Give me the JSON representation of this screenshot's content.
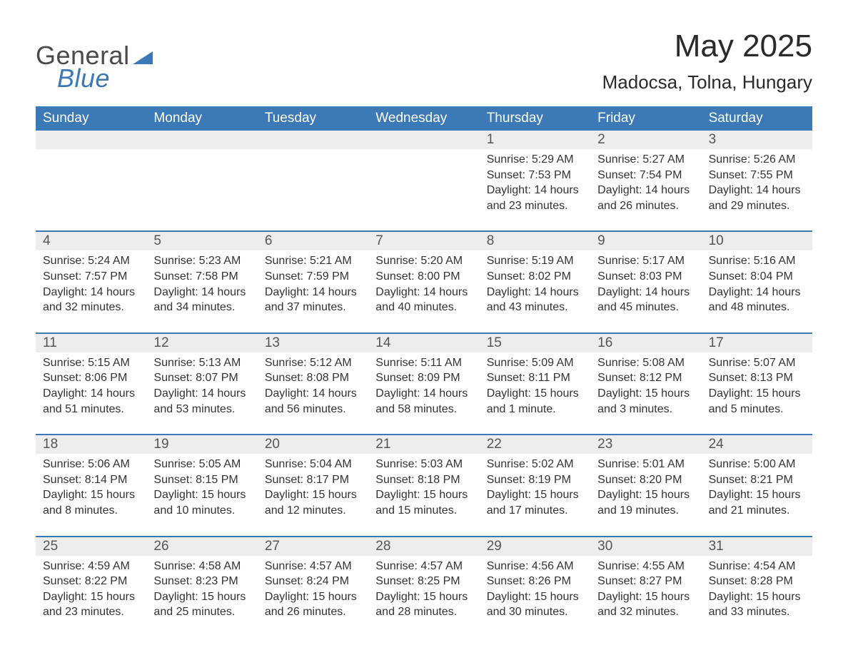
{
  "logo": {
    "word1": "General",
    "word2": "Blue"
  },
  "title": "May 2025",
  "subtitle": "Madocsa, Tolna, Hungary",
  "colors": {
    "header_bg": "#3b79b7",
    "header_text": "#ffffff",
    "daynum_bg": "#ededed",
    "body_text": "#333333",
    "logo_gray": "#4a4a4a",
    "logo_blue": "#3b79b7",
    "page_bg": "#ffffff"
  },
  "weekdays": [
    "Sunday",
    "Monday",
    "Tuesday",
    "Wednesday",
    "Thursday",
    "Friday",
    "Saturday"
  ],
  "weeks": [
    [
      null,
      null,
      null,
      null,
      {
        "n": "1",
        "sr": "Sunrise: 5:29 AM",
        "ss": "Sunset: 7:53 PM",
        "d1": "Daylight: 14 hours",
        "d2": "and 23 minutes."
      },
      {
        "n": "2",
        "sr": "Sunrise: 5:27 AM",
        "ss": "Sunset: 7:54 PM",
        "d1": "Daylight: 14 hours",
        "d2": "and 26 minutes."
      },
      {
        "n": "3",
        "sr": "Sunrise: 5:26 AM",
        "ss": "Sunset: 7:55 PM",
        "d1": "Daylight: 14 hours",
        "d2": "and 29 minutes."
      }
    ],
    [
      {
        "n": "4",
        "sr": "Sunrise: 5:24 AM",
        "ss": "Sunset: 7:57 PM",
        "d1": "Daylight: 14 hours",
        "d2": "and 32 minutes."
      },
      {
        "n": "5",
        "sr": "Sunrise: 5:23 AM",
        "ss": "Sunset: 7:58 PM",
        "d1": "Daylight: 14 hours",
        "d2": "and 34 minutes."
      },
      {
        "n": "6",
        "sr": "Sunrise: 5:21 AM",
        "ss": "Sunset: 7:59 PM",
        "d1": "Daylight: 14 hours",
        "d2": "and 37 minutes."
      },
      {
        "n": "7",
        "sr": "Sunrise: 5:20 AM",
        "ss": "Sunset: 8:00 PM",
        "d1": "Daylight: 14 hours",
        "d2": "and 40 minutes."
      },
      {
        "n": "8",
        "sr": "Sunrise: 5:19 AM",
        "ss": "Sunset: 8:02 PM",
        "d1": "Daylight: 14 hours",
        "d2": "and 43 minutes."
      },
      {
        "n": "9",
        "sr": "Sunrise: 5:17 AM",
        "ss": "Sunset: 8:03 PM",
        "d1": "Daylight: 14 hours",
        "d2": "and 45 minutes."
      },
      {
        "n": "10",
        "sr": "Sunrise: 5:16 AM",
        "ss": "Sunset: 8:04 PM",
        "d1": "Daylight: 14 hours",
        "d2": "and 48 minutes."
      }
    ],
    [
      {
        "n": "11",
        "sr": "Sunrise: 5:15 AM",
        "ss": "Sunset: 8:06 PM",
        "d1": "Daylight: 14 hours",
        "d2": "and 51 minutes."
      },
      {
        "n": "12",
        "sr": "Sunrise: 5:13 AM",
        "ss": "Sunset: 8:07 PM",
        "d1": "Daylight: 14 hours",
        "d2": "and 53 minutes."
      },
      {
        "n": "13",
        "sr": "Sunrise: 5:12 AM",
        "ss": "Sunset: 8:08 PM",
        "d1": "Daylight: 14 hours",
        "d2": "and 56 minutes."
      },
      {
        "n": "14",
        "sr": "Sunrise: 5:11 AM",
        "ss": "Sunset: 8:09 PM",
        "d1": "Daylight: 14 hours",
        "d2": "and 58 minutes."
      },
      {
        "n": "15",
        "sr": "Sunrise: 5:09 AM",
        "ss": "Sunset: 8:11 PM",
        "d1": "Daylight: 15 hours",
        "d2": "and 1 minute."
      },
      {
        "n": "16",
        "sr": "Sunrise: 5:08 AM",
        "ss": "Sunset: 8:12 PM",
        "d1": "Daylight: 15 hours",
        "d2": "and 3 minutes."
      },
      {
        "n": "17",
        "sr": "Sunrise: 5:07 AM",
        "ss": "Sunset: 8:13 PM",
        "d1": "Daylight: 15 hours",
        "d2": "and 5 minutes."
      }
    ],
    [
      {
        "n": "18",
        "sr": "Sunrise: 5:06 AM",
        "ss": "Sunset: 8:14 PM",
        "d1": "Daylight: 15 hours",
        "d2": "and 8 minutes."
      },
      {
        "n": "19",
        "sr": "Sunrise: 5:05 AM",
        "ss": "Sunset: 8:15 PM",
        "d1": "Daylight: 15 hours",
        "d2": "and 10 minutes."
      },
      {
        "n": "20",
        "sr": "Sunrise: 5:04 AM",
        "ss": "Sunset: 8:17 PM",
        "d1": "Daylight: 15 hours",
        "d2": "and 12 minutes."
      },
      {
        "n": "21",
        "sr": "Sunrise: 5:03 AM",
        "ss": "Sunset: 8:18 PM",
        "d1": "Daylight: 15 hours",
        "d2": "and 15 minutes."
      },
      {
        "n": "22",
        "sr": "Sunrise: 5:02 AM",
        "ss": "Sunset: 8:19 PM",
        "d1": "Daylight: 15 hours",
        "d2": "and 17 minutes."
      },
      {
        "n": "23",
        "sr": "Sunrise: 5:01 AM",
        "ss": "Sunset: 8:20 PM",
        "d1": "Daylight: 15 hours",
        "d2": "and 19 minutes."
      },
      {
        "n": "24",
        "sr": "Sunrise: 5:00 AM",
        "ss": "Sunset: 8:21 PM",
        "d1": "Daylight: 15 hours",
        "d2": "and 21 minutes."
      }
    ],
    [
      {
        "n": "25",
        "sr": "Sunrise: 4:59 AM",
        "ss": "Sunset: 8:22 PM",
        "d1": "Daylight: 15 hours",
        "d2": "and 23 minutes."
      },
      {
        "n": "26",
        "sr": "Sunrise: 4:58 AM",
        "ss": "Sunset: 8:23 PM",
        "d1": "Daylight: 15 hours",
        "d2": "and 25 minutes."
      },
      {
        "n": "27",
        "sr": "Sunrise: 4:57 AM",
        "ss": "Sunset: 8:24 PM",
        "d1": "Daylight: 15 hours",
        "d2": "and 26 minutes."
      },
      {
        "n": "28",
        "sr": "Sunrise: 4:57 AM",
        "ss": "Sunset: 8:25 PM",
        "d1": "Daylight: 15 hours",
        "d2": "and 28 minutes."
      },
      {
        "n": "29",
        "sr": "Sunrise: 4:56 AM",
        "ss": "Sunset: 8:26 PM",
        "d1": "Daylight: 15 hours",
        "d2": "and 30 minutes."
      },
      {
        "n": "30",
        "sr": "Sunrise: 4:55 AM",
        "ss": "Sunset: 8:27 PM",
        "d1": "Daylight: 15 hours",
        "d2": "and 32 minutes."
      },
      {
        "n": "31",
        "sr": "Sunrise: 4:54 AM",
        "ss": "Sunset: 8:28 PM",
        "d1": "Daylight: 15 hours",
        "d2": "and 33 minutes."
      }
    ]
  ]
}
